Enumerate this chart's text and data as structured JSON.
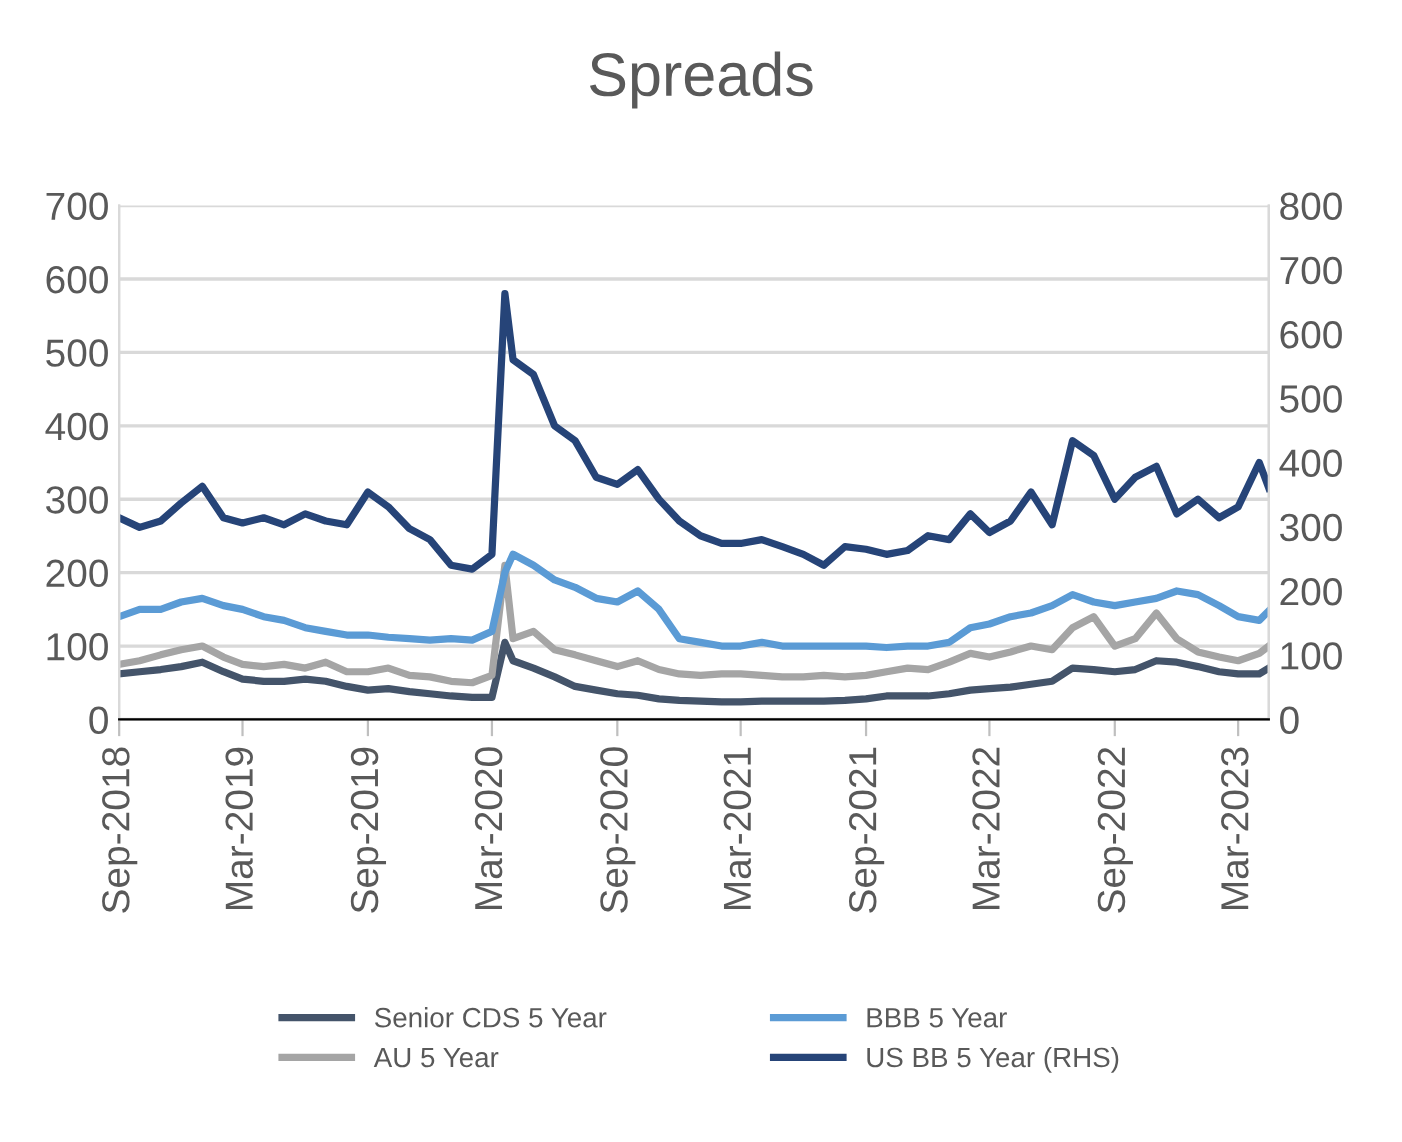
{
  "chart_data": {
    "type": "line",
    "title": "Spreads",
    "x": [
      "2018-09-01",
      "2018-10-01",
      "2018-11-01",
      "2018-12-01",
      "2019-01-01",
      "2019-02-01",
      "2019-03-01",
      "2019-04-01",
      "2019-05-01",
      "2019-06-01",
      "2019-07-01",
      "2019-08-01",
      "2019-09-01",
      "2019-10-01",
      "2019-11-01",
      "2019-12-01",
      "2020-01-01",
      "2020-02-01",
      "2020-03-01",
      "2020-03-20",
      "2020-04-01",
      "2020-05-01",
      "2020-06-01",
      "2020-07-01",
      "2020-08-01",
      "2020-09-01",
      "2020-10-01",
      "2020-11-01",
      "2020-12-01",
      "2021-01-01",
      "2021-02-01",
      "2021-03-01",
      "2021-04-01",
      "2021-05-01",
      "2021-06-01",
      "2021-07-01",
      "2021-08-01",
      "2021-09-01",
      "2021-10-01",
      "2021-11-01",
      "2021-12-01",
      "2022-01-01",
      "2022-02-01",
      "2022-03-01",
      "2022-04-01",
      "2022-05-01",
      "2022-06-01",
      "2022-07-01",
      "2022-08-01",
      "2022-09-01",
      "2022-10-01",
      "2022-11-01",
      "2022-12-01",
      "2023-01-01",
      "2023-02-01",
      "2023-03-01",
      "2023-04-01",
      "2023-04-15"
    ],
    "series": [
      {
        "name": "Senior CDS 5 Year",
        "color": "#44546a",
        "values": [
          62,
          65,
          68,
          72,
          78,
          65,
          55,
          52,
          52,
          55,
          52,
          45,
          40,
          42,
          38,
          35,
          32,
          30,
          30,
          105,
          80,
          70,
          58,
          45,
          40,
          35,
          33,
          28,
          26,
          25,
          24,
          24,
          25,
          25,
          25,
          25,
          26,
          28,
          32,
          32,
          32,
          35,
          40,
          42,
          44,
          48,
          52,
          70,
          68,
          65,
          68,
          80,
          78,
          72,
          65,
          62,
          62,
          70
        ]
      },
      {
        "name": "AU 5 Year",
        "color": "#a5a5a5",
        "values": [
          75,
          80,
          88,
          95,
          100,
          85,
          75,
          72,
          75,
          70,
          78,
          65,
          65,
          70,
          60,
          58,
          52,
          50,
          60,
          210,
          110,
          120,
          95,
          88,
          80,
          72,
          80,
          68,
          62,
          60,
          62,
          62,
          60,
          58,
          58,
          60,
          58,
          60,
          65,
          70,
          68,
          78,
          90,
          85,
          92,
          100,
          95,
          125,
          140,
          100,
          110,
          145,
          110,
          92,
          85,
          80,
          90,
          100
        ]
      },
      {
        "name": "BBB 5 Year",
        "color": "#5b9bd5",
        "values": [
          140,
          150,
          150,
          160,
          165,
          155,
          150,
          140,
          135,
          125,
          120,
          115,
          115,
          112,
          110,
          108,
          110,
          108,
          120,
          200,
          225,
          210,
          190,
          180,
          165,
          160,
          175,
          150,
          110,
          105,
          100,
          100,
          105,
          100,
          100,
          100,
          100,
          100,
          98,
          100,
          100,
          105,
          125,
          130,
          140,
          145,
          155,
          170,
          160,
          155,
          160,
          165,
          175,
          170,
          155,
          140,
          135,
          148
        ]
      },
      {
        "name": "US BB 5 Year (RHS)",
        "color": "#264478",
        "axis": "y2",
        "values": [
          314,
          299,
          309,
          337,
          363,
          314,
          306,
          314,
          303,
          320,
          309,
          303,
          354,
          331,
          297,
          280,
          240,
          234,
          257,
          663,
          560,
          537,
          457,
          434,
          377,
          366,
          389,
          343,
          309,
          286,
          274,
          274,
          280,
          269,
          257,
          240,
          269,
          265,
          257,
          263,
          286,
          280,
          320,
          291,
          309,
          354,
          303,
          434,
          411,
          343,
          377,
          394,
          320,
          343,
          314,
          331,
          400,
          360
        ]
      }
    ],
    "xlim": [
      "2018-09-01",
      "2023-04-15"
    ],
    "xticks": [
      {
        "value": "2018-09-01",
        "label": "Sep-2018"
      },
      {
        "value": "2019-03-01",
        "label": "Mar-2019"
      },
      {
        "value": "2019-09-01",
        "label": "Sep-2019"
      },
      {
        "value": "2020-03-01",
        "label": "Mar-2020"
      },
      {
        "value": "2020-09-01",
        "label": "Sep-2020"
      },
      {
        "value": "2021-03-01",
        "label": "Mar-2021"
      },
      {
        "value": "2021-09-01",
        "label": "Sep-2021"
      },
      {
        "value": "2022-03-01",
        "label": "Mar-2022"
      },
      {
        "value": "2022-09-01",
        "label": "Sep-2022"
      },
      {
        "value": "2023-03-01",
        "label": "Mar-2023"
      }
    ],
    "ylim": [
      0,
      700
    ],
    "yticks": [
      0,
      100,
      200,
      300,
      400,
      500,
      600,
      700
    ],
    "y2lim": [
      0,
      800
    ],
    "y2ticks": [
      0,
      100,
      200,
      300,
      400,
      500,
      600,
      700,
      800
    ],
    "grid": "y",
    "legend": "bottom",
    "marker": "none",
    "line_style": "solid"
  }
}
